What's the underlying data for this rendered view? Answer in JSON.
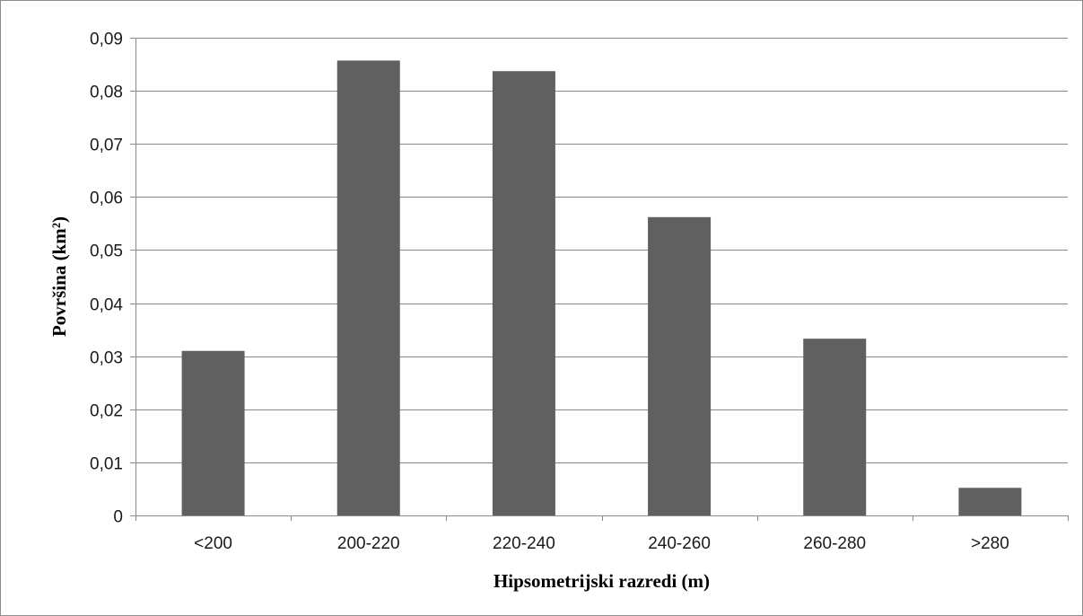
{
  "chart_data": {
    "type": "bar",
    "categories": [
      "<200",
      "200-220",
      "220-240",
      "240-260",
      "260-280",
      ">280"
    ],
    "values": [
      0.031,
      0.0857,
      0.0837,
      0.0562,
      0.0333,
      0.0052
    ],
    "title": "",
    "xlabel": "Hipsometrijski razredi (m)",
    "ylabel": "Površina (km²)",
    "ylim": [
      0,
      0.09
    ],
    "yticks": [
      0,
      0.01,
      0.02,
      0.03,
      0.04,
      0.05,
      0.06,
      0.07,
      0.08,
      0.09
    ],
    "ytick_labels": [
      "0",
      "0,01",
      "0,02",
      "0,03",
      "0,04",
      "0,05",
      "0,06",
      "0,07",
      "0,08",
      "0,09"
    ],
    "grid": true,
    "legend": "none",
    "bar_color": "#606060"
  }
}
